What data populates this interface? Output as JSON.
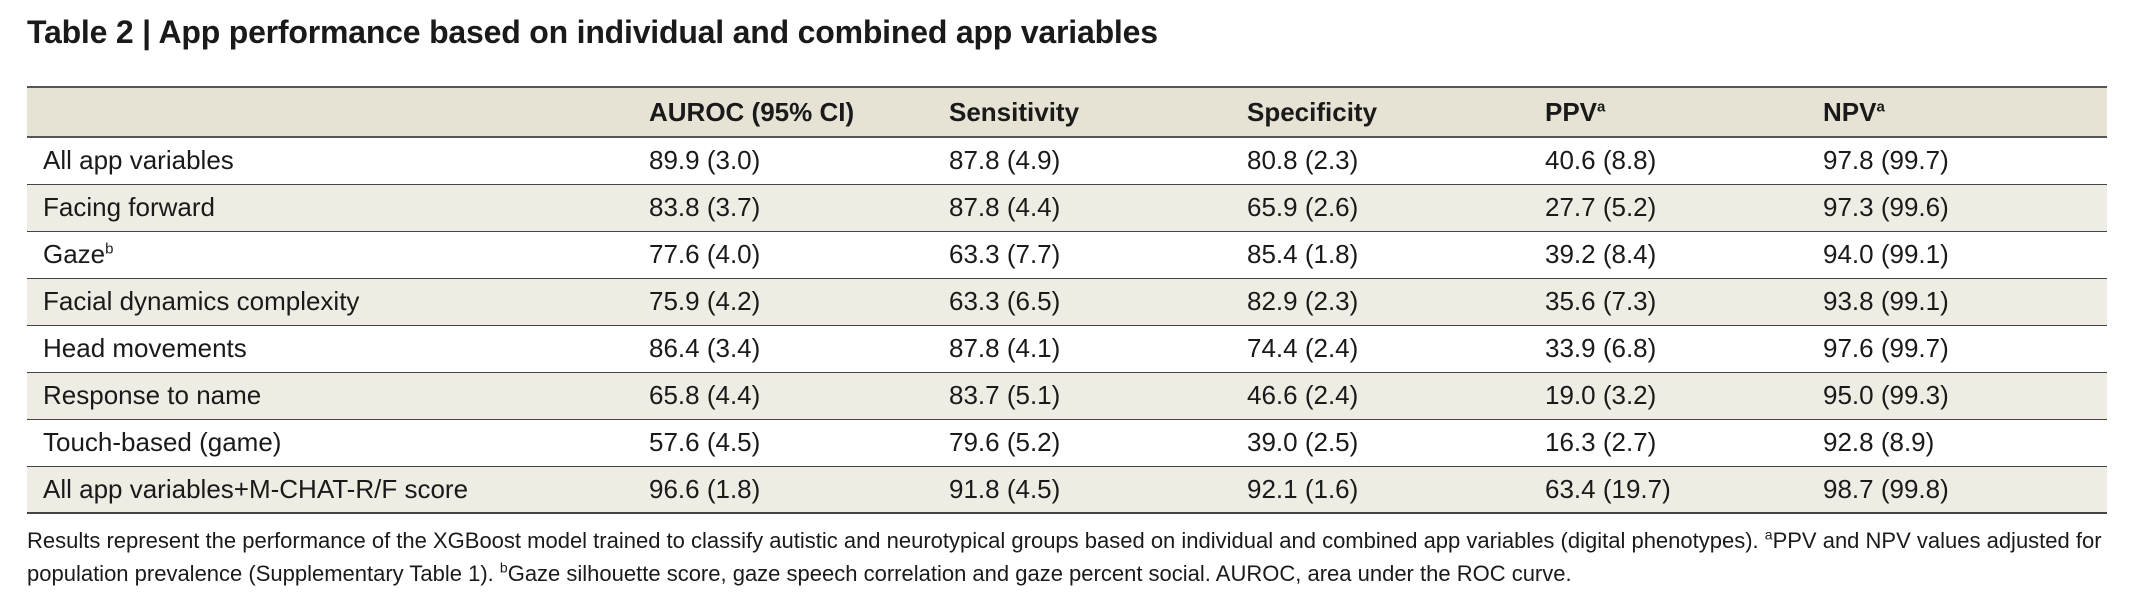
{
  "title": "Table 2 | App performance based on individual and combined app variables",
  "columns": [
    {
      "label": "",
      "sup": ""
    },
    {
      "label": "AUROC (95% CI)",
      "sup": ""
    },
    {
      "label": "Sensitivity",
      "sup": ""
    },
    {
      "label": "Specificity",
      "sup": ""
    },
    {
      "label": "PPV",
      "sup": "a"
    },
    {
      "label": "NPV",
      "sup": "a"
    }
  ],
  "rows": [
    {
      "label": "All app variables",
      "sup": "",
      "values": [
        "89.9 (3.0)",
        "87.8 (4.9)",
        "80.8 (2.3)",
        "40.6 (8.8)",
        "97.8 (99.7)"
      ]
    },
    {
      "label": "Facing forward",
      "sup": "",
      "values": [
        "83.8 (3.7)",
        "87.8 (4.4)",
        "65.9 (2.6)",
        "27.7 (5.2)",
        "97.3 (99.6)"
      ]
    },
    {
      "label": "Gaze",
      "sup": "b",
      "values": [
        "77.6 (4.0)",
        "63.3 (7.7)",
        "85.4 (1.8)",
        "39.2 (8.4)",
        "94.0 (99.1)"
      ]
    },
    {
      "label": "Facial dynamics complexity",
      "sup": "",
      "values": [
        "75.9 (4.2)",
        "63.3 (6.5)",
        "82.9 (2.3)",
        "35.6 (7.3)",
        "93.8 (99.1)"
      ]
    },
    {
      "label": "Head movements",
      "sup": "",
      "values": [
        "86.4 (3.4)",
        "87.8 (4.1)",
        "74.4 (2.4)",
        "33.9 (6.8)",
        "97.6 (99.7)"
      ]
    },
    {
      "label": "Response to name",
      "sup": "",
      "values": [
        "65.8 (4.4)",
        "83.7 (5.1)",
        "46.6 (2.4)",
        "19.0 (3.2)",
        "95.0 (99.3)"
      ]
    },
    {
      "label": "Touch-based (game)",
      "sup": "",
      "values": [
        "57.6 (4.5)",
        "79.6 (5.2)",
        "39.0 (2.5)",
        "16.3 (2.7)",
        "92.8 (8.9)"
      ]
    },
    {
      "label": "All app variables+M-CHAT-R/F score",
      "sup": "",
      "values": [
        "96.6 (1.8)",
        "91.8 (4.5)",
        "92.1 (1.6)",
        "63.4 (19.7)",
        "98.7 (99.8)"
      ]
    }
  ],
  "footnote": {
    "part1": "Results represent the performance of the XGBoost model trained to classify autistic and neurotypical groups based on individual and combined app variables (digital phenotypes). ",
    "sup_a": "a",
    "part2": "PPV and NPV values adjusted for population prevalence (Supplementary Table 1). ",
    "sup_b": "b",
    "part3": "Gaze silhouette score, gaze speech correlation and gaze percent social. AUROC, area under the ROC curve."
  }
}
